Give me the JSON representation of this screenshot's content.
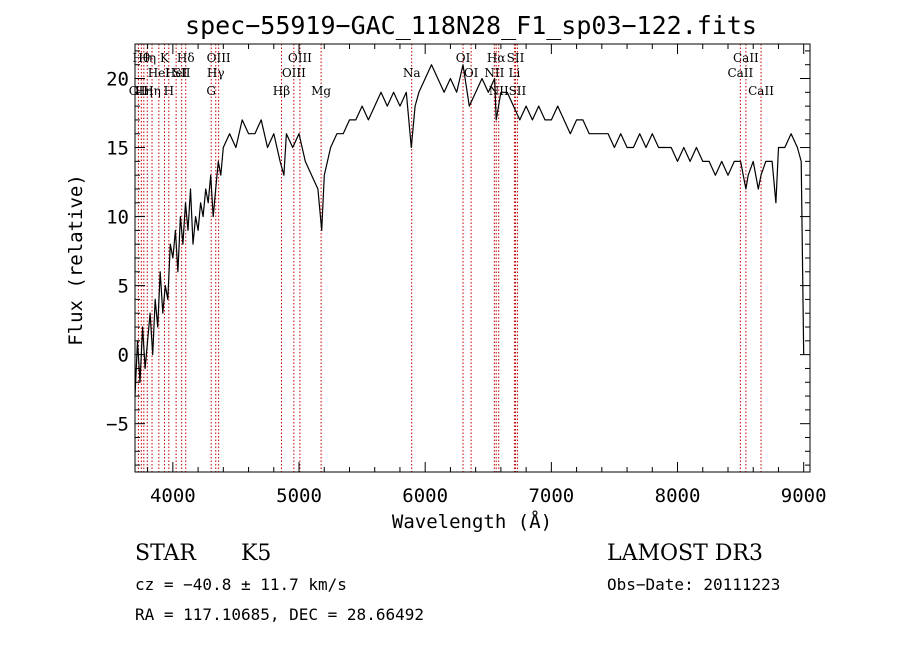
{
  "chart_data": {
    "type": "line",
    "title": "spec−55919−GAC_118N28_F1_sp03−122.fits",
    "xlabel": "Wavelength (Å)",
    "ylabel": "Flux (relative)",
    "xlim": [
      3700,
      9050
    ],
    "ylim": [
      -8.5,
      22.5
    ],
    "grid": false,
    "x_ticks": [
      {
        "value": 4000,
        "label": "4000"
      },
      {
        "value": 5000,
        "label": "5000"
      },
      {
        "value": 6000,
        "label": "6000"
      },
      {
        "value": 7000,
        "label": "7000"
      },
      {
        "value": 8000,
        "label": "8000"
      },
      {
        "value": 9000,
        "label": "9000"
      }
    ],
    "y_ticks": [
      {
        "value": -5,
        "label": "−5"
      },
      {
        "value": 0,
        "label": "0"
      },
      {
        "value": 5,
        "label": "5"
      },
      {
        "value": 10,
        "label": "10"
      },
      {
        "value": 15,
        "label": "15"
      },
      {
        "value": 20,
        "label": "20"
      }
    ],
    "series": [
      {
        "name": "flux",
        "x": [
          3700,
          3720,
          3740,
          3760,
          3780,
          3800,
          3820,
          3840,
          3860,
          3880,
          3900,
          3920,
          3940,
          3960,
          3980,
          4000,
          4020,
          4040,
          4060,
          4080,
          4100,
          4120,
          4140,
          4160,
          4180,
          4200,
          4220,
          4240,
          4260,
          4280,
          4300,
          4320,
          4340,
          4360,
          4380,
          4400,
          4450,
          4500,
          4550,
          4600,
          4650,
          4700,
          4750,
          4800,
          4850,
          4880,
          4900,
          4950,
          5000,
          5050,
          5100,
          5150,
          5180,
          5200,
          5250,
          5300,
          5350,
          5400,
          5450,
          5500,
          5550,
          5600,
          5650,
          5700,
          5750,
          5800,
          5850,
          5890,
          5920,
          5950,
          6000,
          6050,
          6100,
          6150,
          6200,
          6250,
          6300,
          6350,
          6400,
          6450,
          6500,
          6550,
          6563,
          6600,
          6650,
          6700,
          6750,
          6800,
          6850,
          6900,
          6950,
          7000,
          7050,
          7100,
          7150,
          7200,
          7250,
          7300,
          7350,
          7400,
          7450,
          7500,
          7550,
          7600,
          7650,
          7700,
          7750,
          7800,
          7850,
          7900,
          7950,
          8000,
          8050,
          8100,
          8150,
          8200,
          8250,
          8300,
          8350,
          8400,
          8450,
          8500,
          8542,
          8560,
          8600,
          8640,
          8662,
          8700,
          8750,
          8780,
          8800,
          8850,
          8900,
          8950,
          8980,
          9000
        ],
        "y": [
          -3,
          1,
          -2,
          2,
          -1,
          1,
          3,
          0,
          4,
          2,
          6,
          3,
          5,
          4,
          8,
          7,
          9,
          6,
          10,
          8,
          11,
          9,
          12,
          8,
          10,
          9,
          11,
          10,
          12,
          11,
          13,
          10,
          12,
          14,
          13,
          15,
          16,
          15,
          17,
          16,
          16,
          17,
          15,
          16,
          14,
          13,
          16,
          15,
          16,
          14,
          13,
          12,
          9,
          13,
          15,
          16,
          16,
          17,
          17,
          18,
          17,
          18,
          19,
          18,
          19,
          18,
          19,
          15,
          18,
          19,
          20,
          21,
          20,
          19,
          20,
          19,
          21,
          18,
          19,
          20,
          19,
          20,
          17,
          19,
          19,
          18,
          17,
          18,
          17,
          18,
          17,
          17,
          18,
          17,
          16,
          17,
          17,
          16,
          16,
          16,
          16,
          15,
          16,
          15,
          15,
          16,
          15,
          16,
          15,
          15,
          15,
          14,
          15,
          14,
          15,
          14,
          14,
          13,
          14,
          13,
          14,
          14,
          12,
          13,
          14,
          12,
          13,
          14,
          14,
          11,
          15,
          15,
          16,
          15,
          14,
          0
        ]
      }
    ],
    "spectral_lines": [
      {
        "x": 3727,
        "label": "OII",
        "row": 3
      },
      {
        "x": 3750,
        "label": "Hθ",
        "row": 1
      },
      {
        "x": 3770,
        "label": "Hη",
        "row": 3
      },
      {
        "x": 3797,
        "label": "Hη",
        "row": 1
      },
      {
        "x": 3835,
        "label": "Hη",
        "row": 3
      },
      {
        "x": 3889,
        "label": "HeI",
        "row": 2
      },
      {
        "x": 3934,
        "label": "K",
        "row": 1
      },
      {
        "x": 3968,
        "label": "H",
        "row": 3
      },
      {
        "x": 4026,
        "label": "HeI",
        "row": 2
      },
      {
        "x": 4070,
        "label": "SII",
        "row": 2
      },
      {
        "x": 4102,
        "label": "Hδ",
        "row": 1
      },
      {
        "x": 4304,
        "label": "G",
        "row": 3
      },
      {
        "x": 4340,
        "label": "Hγ",
        "row": 2
      },
      {
        "x": 4363,
        "label": "OIII",
        "row": 1
      },
      {
        "x": 4861,
        "label": "Hβ",
        "row": 3
      },
      {
        "x": 4959,
        "label": "OIII",
        "row": 2
      },
      {
        "x": 5007,
        "label": "OIII",
        "row": 1
      },
      {
        "x": 5175,
        "label": "Mg",
        "row": 3
      },
      {
        "x": 5893,
        "label": "Na",
        "row": 2
      },
      {
        "x": 6300,
        "label": "OI",
        "row": 1
      },
      {
        "x": 6364,
        "label": "OI",
        "row": 2
      },
      {
        "x": 6548,
        "label": "NII",
        "row": 2
      },
      {
        "x": 6563,
        "label": "Hα",
        "row": 1
      },
      {
        "x": 6583,
        "label": "NII",
        "row": 3
      },
      {
        "x": 6707,
        "label": "Li",
        "row": 2
      },
      {
        "x": 6716,
        "label": "SII",
        "row": 1
      },
      {
        "x": 6731,
        "label": "SII",
        "row": 3
      },
      {
        "x": 8498,
        "label": "CaII",
        "row": 2
      },
      {
        "x": 8542,
        "label": "CaII",
        "row": 1
      },
      {
        "x": 8662,
        "label": "CaII",
        "row": 3
      }
    ]
  },
  "info": {
    "object_class": "STAR",
    "subclass": "K5",
    "survey": "LAMOST DR3",
    "redshift": "cz = −40.8 ± 11.7 km/s",
    "obs_date": "Obs−Date: 20111223",
    "coords": "RA = 117.10685, DEC =  28.66492"
  }
}
